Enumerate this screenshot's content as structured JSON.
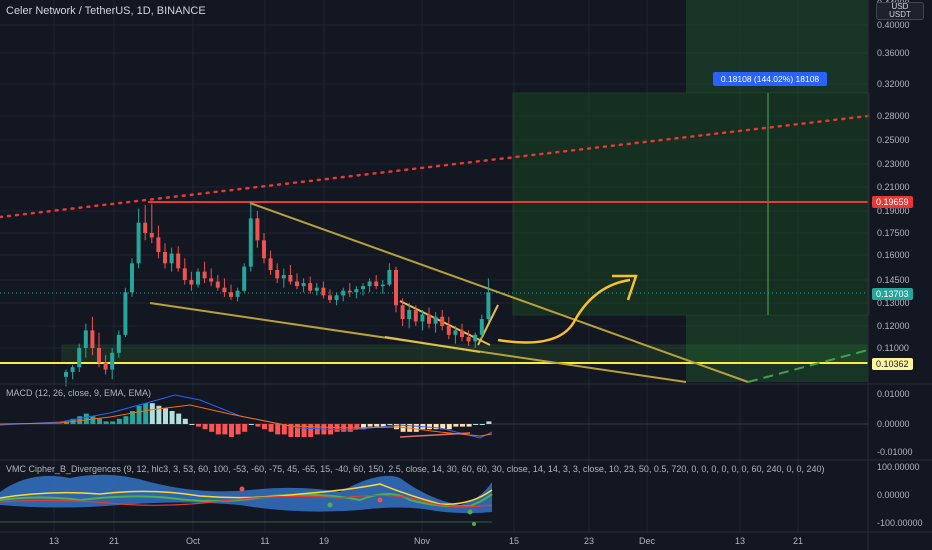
{
  "header": {
    "title": "Celer Network / TetherUS, 1D, BINANCE",
    "currency_top": "USD",
    "currency_bottom": "USDT"
  },
  "price_axis": {
    "ticks": [
      "0.40000",
      "0.36000",
      "0.32000",
      "0.28000",
      "0.25000",
      "0.23000",
      "0.21000",
      "0.19000",
      "0.17500",
      "0.16000",
      "0.14500",
      "0.13000",
      "0.12000",
      "0.11000"
    ],
    "top_partial": "0.44000"
  },
  "price_tags": {
    "resistance": "0.19659",
    "current": "0.13703",
    "support": "0.10362"
  },
  "position_label": "0.18108 (144.02%) 18108",
  "macd": {
    "label": "MACD (12, 26, close, 9, EMA, EMA)",
    "ticks": [
      "0.01000",
      "0.00000",
      "-0.01000"
    ]
  },
  "vmc": {
    "label": "VMC Cipher_B_Divergences (9, 12, hlc3, 3, 53, 60, 100, -53, -60, -75, 45, -65, 15, -40, 60, 150, 2.5, close, 14, 30, 60, 60, 30, close, 14, 14, 3, 3, close, 10, 23, 50, 0.5, 720, 0, 0, 0, 0, 0, 0, 60, 240, 0, 0, 240)",
    "ticks": [
      "100.00000",
      "0.00000",
      "-100.00000"
    ]
  },
  "time_axis": [
    "13",
    "21",
    "Oct",
    "11",
    "19",
    "Nov",
    "15",
    "23",
    "Dec",
    "13",
    "21"
  ],
  "colors": {
    "background": "#131722",
    "up": "#26a69a",
    "down": "#ef5350",
    "trendline": "#b8a13a",
    "resistance": "#e53935",
    "support": "#ffeb3b",
    "target_zone": "#1b5e20",
    "label_blue": "#2962ff"
  },
  "chart_data": {
    "type": "candlestick",
    "timeframe": "1D",
    "price_levels": {
      "resistance": 0.19659,
      "current": 0.13703,
      "support": 0.10362,
      "target": 0.31811
    },
    "candles": [
      {
        "o": 0.098,
        "h": 0.101,
        "l": 0.094,
        "c": 0.1
      },
      {
        "o": 0.1,
        "h": 0.103,
        "l": 0.097,
        "c": 0.102
      },
      {
        "o": 0.102,
        "h": 0.112,
        "l": 0.1,
        "c": 0.11
      },
      {
        "o": 0.11,
        "h": 0.121,
        "l": 0.106,
        "c": 0.118
      },
      {
        "o": 0.118,
        "h": 0.124,
        "l": 0.107,
        "c": 0.11
      },
      {
        "o": 0.11,
        "h": 0.117,
        "l": 0.102,
        "c": 0.104
      },
      {
        "o": 0.104,
        "h": 0.107,
        "l": 0.099,
        "c": 0.101
      },
      {
        "o": 0.101,
        "h": 0.11,
        "l": 0.097,
        "c": 0.108
      },
      {
        "o": 0.108,
        "h": 0.118,
        "l": 0.106,
        "c": 0.116
      },
      {
        "o": 0.116,
        "h": 0.14,
        "l": 0.115,
        "c": 0.137
      },
      {
        "o": 0.137,
        "h": 0.158,
        "l": 0.134,
        "c": 0.155
      },
      {
        "o": 0.155,
        "h": 0.192,
        "l": 0.152,
        "c": 0.182
      },
      {
        "o": 0.182,
        "h": 0.195,
        "l": 0.17,
        "c": 0.175
      },
      {
        "o": 0.175,
        "h": 0.196,
        "l": 0.168,
        "c": 0.172
      },
      {
        "o": 0.172,
        "h": 0.18,
        "l": 0.158,
        "c": 0.162
      },
      {
        "o": 0.162,
        "h": 0.168,
        "l": 0.152,
        "c": 0.155
      },
      {
        "o": 0.155,
        "h": 0.165,
        "l": 0.15,
        "c": 0.161
      },
      {
        "o": 0.161,
        "h": 0.166,
        "l": 0.15,
        "c": 0.152
      },
      {
        "o": 0.152,
        "h": 0.158,
        "l": 0.142,
        "c": 0.145
      },
      {
        "o": 0.145,
        "h": 0.15,
        "l": 0.138,
        "c": 0.142
      },
      {
        "o": 0.142,
        "h": 0.152,
        "l": 0.14,
        "c": 0.15
      },
      {
        "o": 0.15,
        "h": 0.156,
        "l": 0.143,
        "c": 0.146
      },
      {
        "o": 0.146,
        "h": 0.152,
        "l": 0.141,
        "c": 0.144
      },
      {
        "o": 0.144,
        "h": 0.148,
        "l": 0.138,
        "c": 0.14
      },
      {
        "o": 0.14,
        "h": 0.146,
        "l": 0.134,
        "c": 0.137
      },
      {
        "o": 0.137,
        "h": 0.142,
        "l": 0.132,
        "c": 0.134
      },
      {
        "o": 0.134,
        "h": 0.14,
        "l": 0.131,
        "c": 0.138
      },
      {
        "o": 0.138,
        "h": 0.155,
        "l": 0.137,
        "c": 0.153
      },
      {
        "o": 0.153,
        "h": 0.196,
        "l": 0.15,
        "c": 0.185
      },
      {
        "o": 0.185,
        "h": 0.19,
        "l": 0.165,
        "c": 0.17
      },
      {
        "o": 0.17,
        "h": 0.175,
        "l": 0.155,
        "c": 0.158
      },
      {
        "o": 0.158,
        "h": 0.163,
        "l": 0.148,
        "c": 0.151
      },
      {
        "o": 0.151,
        "h": 0.155,
        "l": 0.143,
        "c": 0.146
      },
      {
        "o": 0.146,
        "h": 0.152,
        "l": 0.14,
        "c": 0.148
      },
      {
        "o": 0.148,
        "h": 0.154,
        "l": 0.142,
        "c": 0.144
      },
      {
        "o": 0.144,
        "h": 0.149,
        "l": 0.139,
        "c": 0.141
      },
      {
        "o": 0.141,
        "h": 0.146,
        "l": 0.137,
        "c": 0.143
      },
      {
        "o": 0.143,
        "h": 0.147,
        "l": 0.136,
        "c": 0.138
      },
      {
        "o": 0.138,
        "h": 0.143,
        "l": 0.135,
        "c": 0.14
      },
      {
        "o": 0.14,
        "h": 0.144,
        "l": 0.133,
        "c": 0.135
      },
      {
        "o": 0.135,
        "h": 0.139,
        "l": 0.13,
        "c": 0.132
      },
      {
        "o": 0.132,
        "h": 0.137,
        "l": 0.129,
        "c": 0.135
      },
      {
        "o": 0.135,
        "h": 0.14,
        "l": 0.131,
        "c": 0.138
      },
      {
        "o": 0.138,
        "h": 0.143,
        "l": 0.134,
        "c": 0.137
      },
      {
        "o": 0.137,
        "h": 0.141,
        "l": 0.133,
        "c": 0.139
      },
      {
        "o": 0.139,
        "h": 0.143,
        "l": 0.135,
        "c": 0.141
      },
      {
        "o": 0.141,
        "h": 0.146,
        "l": 0.137,
        "c": 0.144
      },
      {
        "o": 0.144,
        "h": 0.148,
        "l": 0.139,
        "c": 0.141
      },
      {
        "o": 0.141,
        "h": 0.145,
        "l": 0.136,
        "c": 0.142
      },
      {
        "o": 0.142,
        "h": 0.155,
        "l": 0.141,
        "c": 0.151
      },
      {
        "o": 0.151,
        "h": 0.153,
        "l": 0.126,
        "c": 0.129
      },
      {
        "o": 0.129,
        "h": 0.133,
        "l": 0.12,
        "c": 0.123
      },
      {
        "o": 0.123,
        "h": 0.13,
        "l": 0.119,
        "c": 0.127
      },
      {
        "o": 0.127,
        "h": 0.129,
        "l": 0.12,
        "c": 0.122
      },
      {
        "o": 0.122,
        "h": 0.127,
        "l": 0.118,
        "c": 0.125
      },
      {
        "o": 0.125,
        "h": 0.128,
        "l": 0.119,
        "c": 0.121
      },
      {
        "o": 0.121,
        "h": 0.126,
        "l": 0.117,
        "c": 0.124
      },
      {
        "o": 0.124,
        "h": 0.127,
        "l": 0.118,
        "c": 0.12
      },
      {
        "o": 0.12,
        "h": 0.124,
        "l": 0.114,
        "c": 0.116
      },
      {
        "o": 0.116,
        "h": 0.12,
        "l": 0.112,
        "c": 0.118
      },
      {
        "o": 0.118,
        "h": 0.121,
        "l": 0.113,
        "c": 0.115
      },
      {
        "o": 0.115,
        "h": 0.118,
        "l": 0.111,
        "c": 0.113
      },
      {
        "o": 0.113,
        "h": 0.117,
        "l": 0.11,
        "c": 0.116
      },
      {
        "o": 0.116,
        "h": 0.125,
        "l": 0.114,
        "c": 0.123
      },
      {
        "o": 0.123,
        "h": 0.146,
        "l": 0.122,
        "c": 0.137
      }
    ],
    "macd_hist": [
      0.001,
      0.002,
      0.003,
      0.004,
      0.003,
      0.002,
      0.001,
      0.001,
      0.002,
      0.003,
      0.005,
      0.007,
      0.008,
      0.008,
      0.007,
      0.006,
      0.005,
      0.004,
      0.002,
      0.0,
      -0.001,
      -0.002,
      -0.003,
      -0.004,
      -0.004,
      -0.005,
      -0.004,
      -0.003,
      0.0,
      -0.001,
      -0.002,
      -0.003,
      -0.004,
      -0.004,
      -0.005,
      -0.005,
      -0.005,
      -0.005,
      -0.004,
      -0.004,
      -0.004,
      -0.003,
      -0.003,
      -0.003,
      -0.002,
      -0.002,
      -0.001,
      -0.001,
      -0.001,
      0.0,
      -0.002,
      -0.003,
      -0.003,
      -0.003,
      -0.002,
      -0.002,
      -0.002,
      -0.002,
      -0.002,
      -0.001,
      -0.001,
      -0.001,
      0.0,
      0.0,
      0.001
    ]
  }
}
